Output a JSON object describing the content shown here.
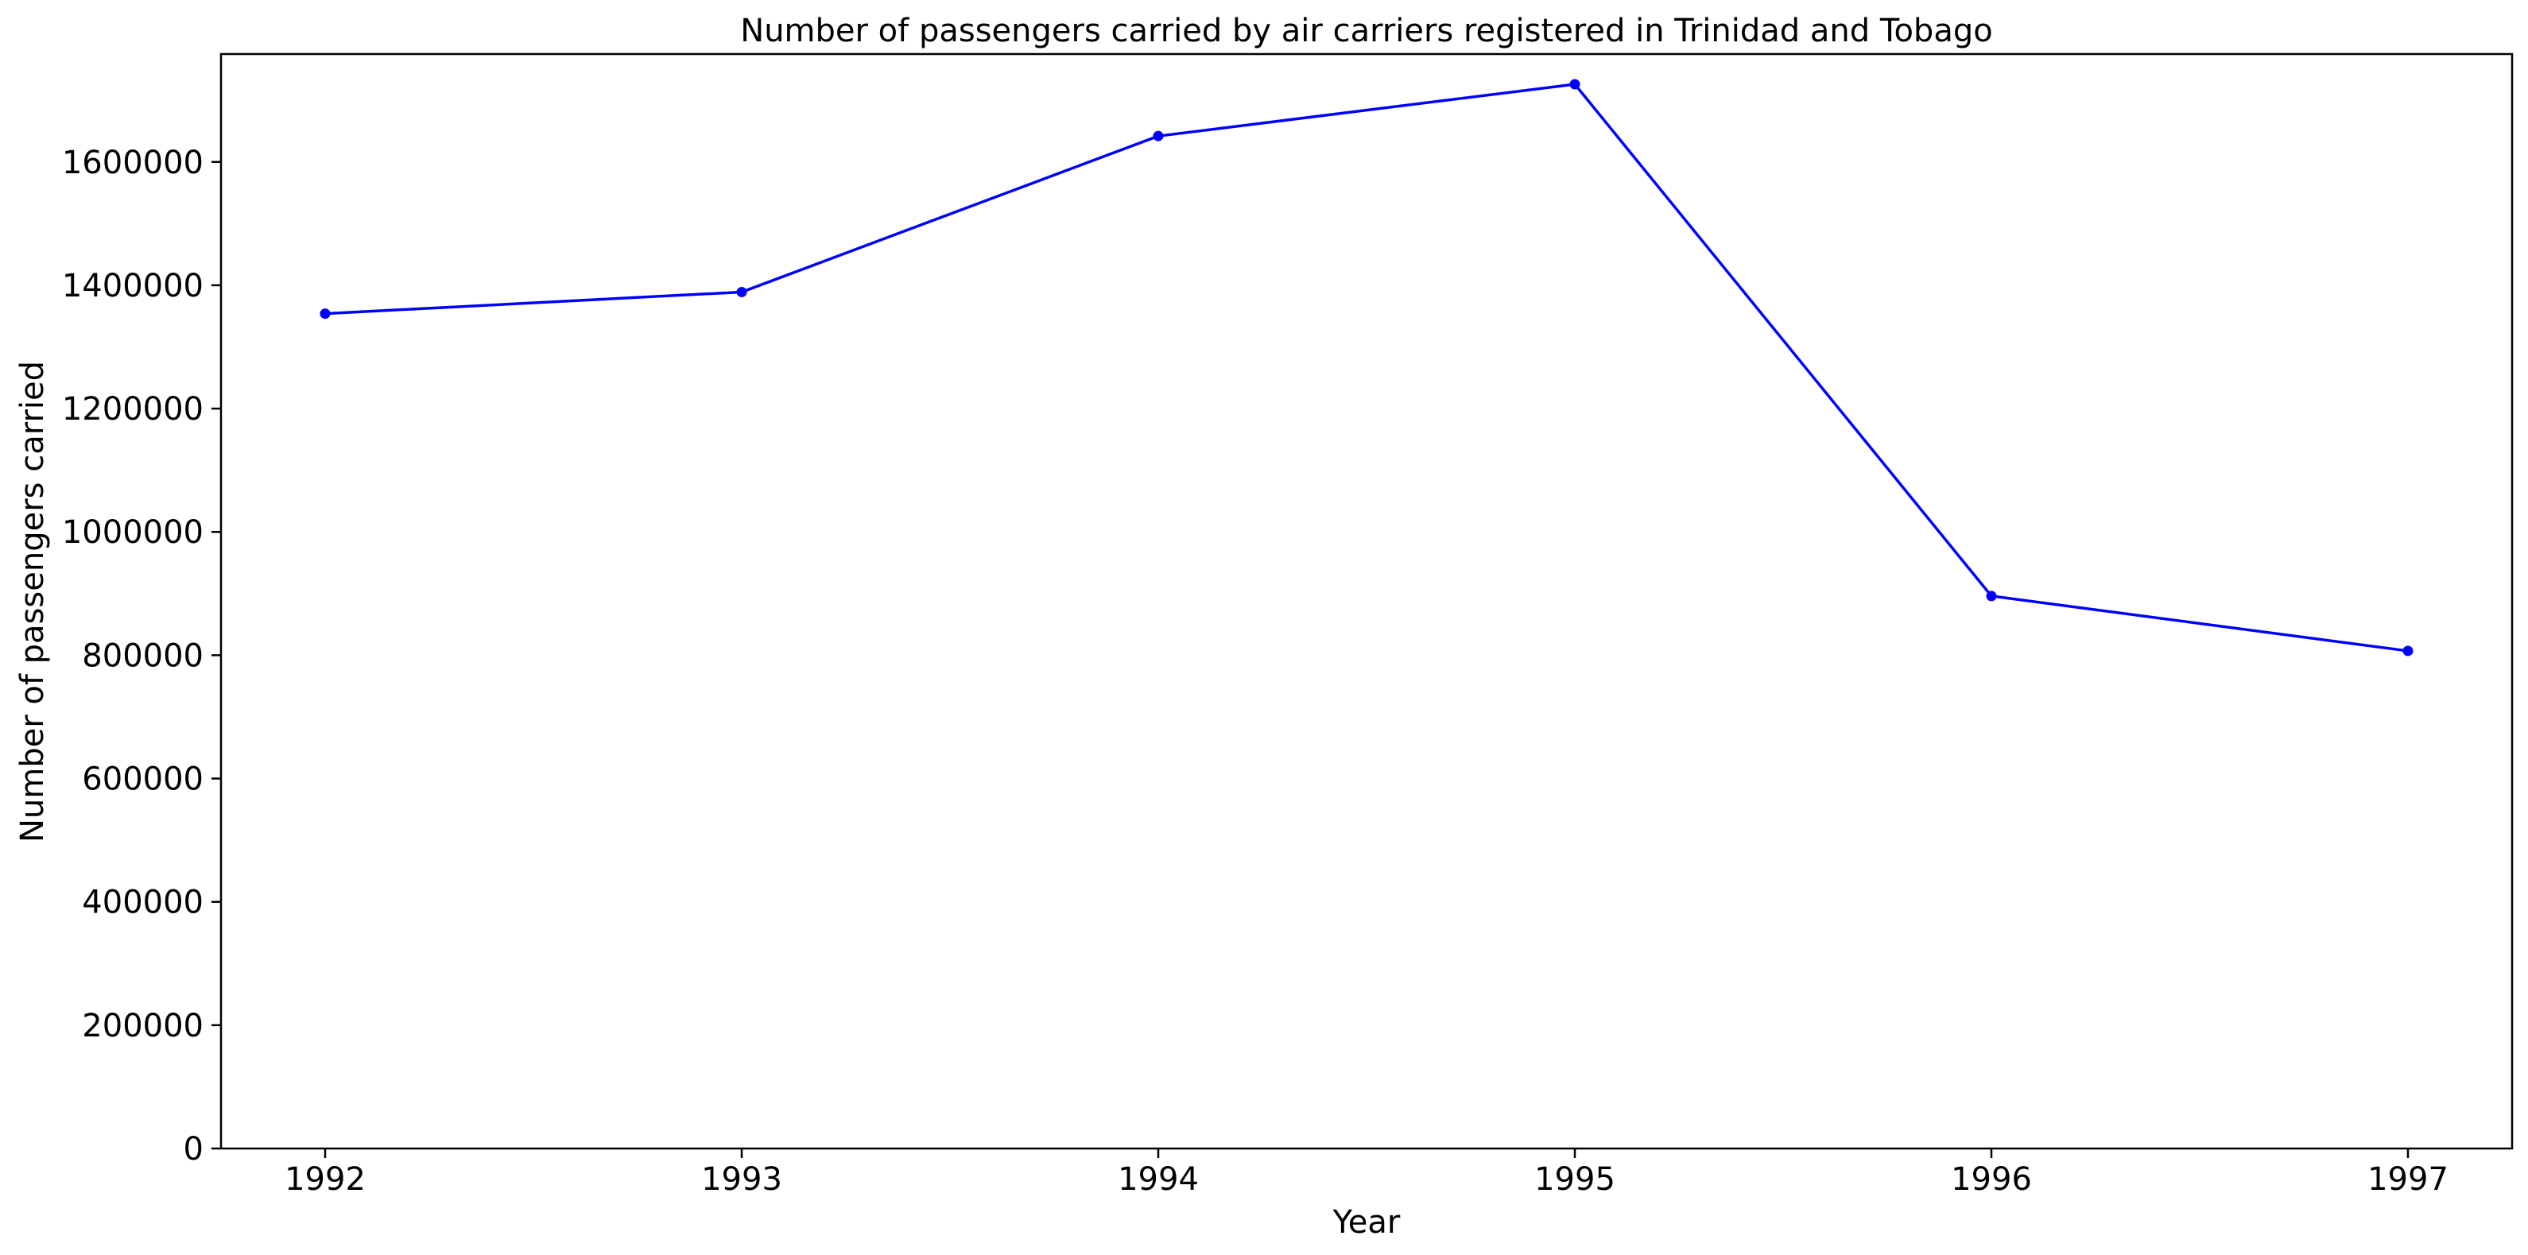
{
  "chart_data": {
    "type": "line",
    "title": "Number of passengers carried by air carriers registered in Trinidad and Tobago",
    "xlabel": "Year",
    "ylabel": "Number of passengers carried",
    "x": [
      1992,
      1993,
      1994,
      1995,
      1996,
      1997
    ],
    "series": [
      {
        "values": [
          1354000,
          1389000,
          1642000,
          1726000,
          896000,
          807000
        ],
        "color": "#0000ff",
        "marker": "circle"
      }
    ],
    "x_ticks": [
      "1992",
      "1993",
      "1994",
      "1995",
      "1996",
      "1997"
    ],
    "y_ticks": [
      "0",
      "200000",
      "400000",
      "600000",
      "800000",
      "1000000",
      "1200000",
      "1400000",
      "1600000"
    ],
    "y_tick_values": [
      0,
      200000,
      400000,
      600000,
      800000,
      1000000,
      1200000,
      1400000,
      1600000
    ],
    "xlim": [
      1991.75,
      1997.25
    ],
    "ylim": [
      0,
      1775000
    ],
    "grid": false,
    "legend": "none"
  }
}
